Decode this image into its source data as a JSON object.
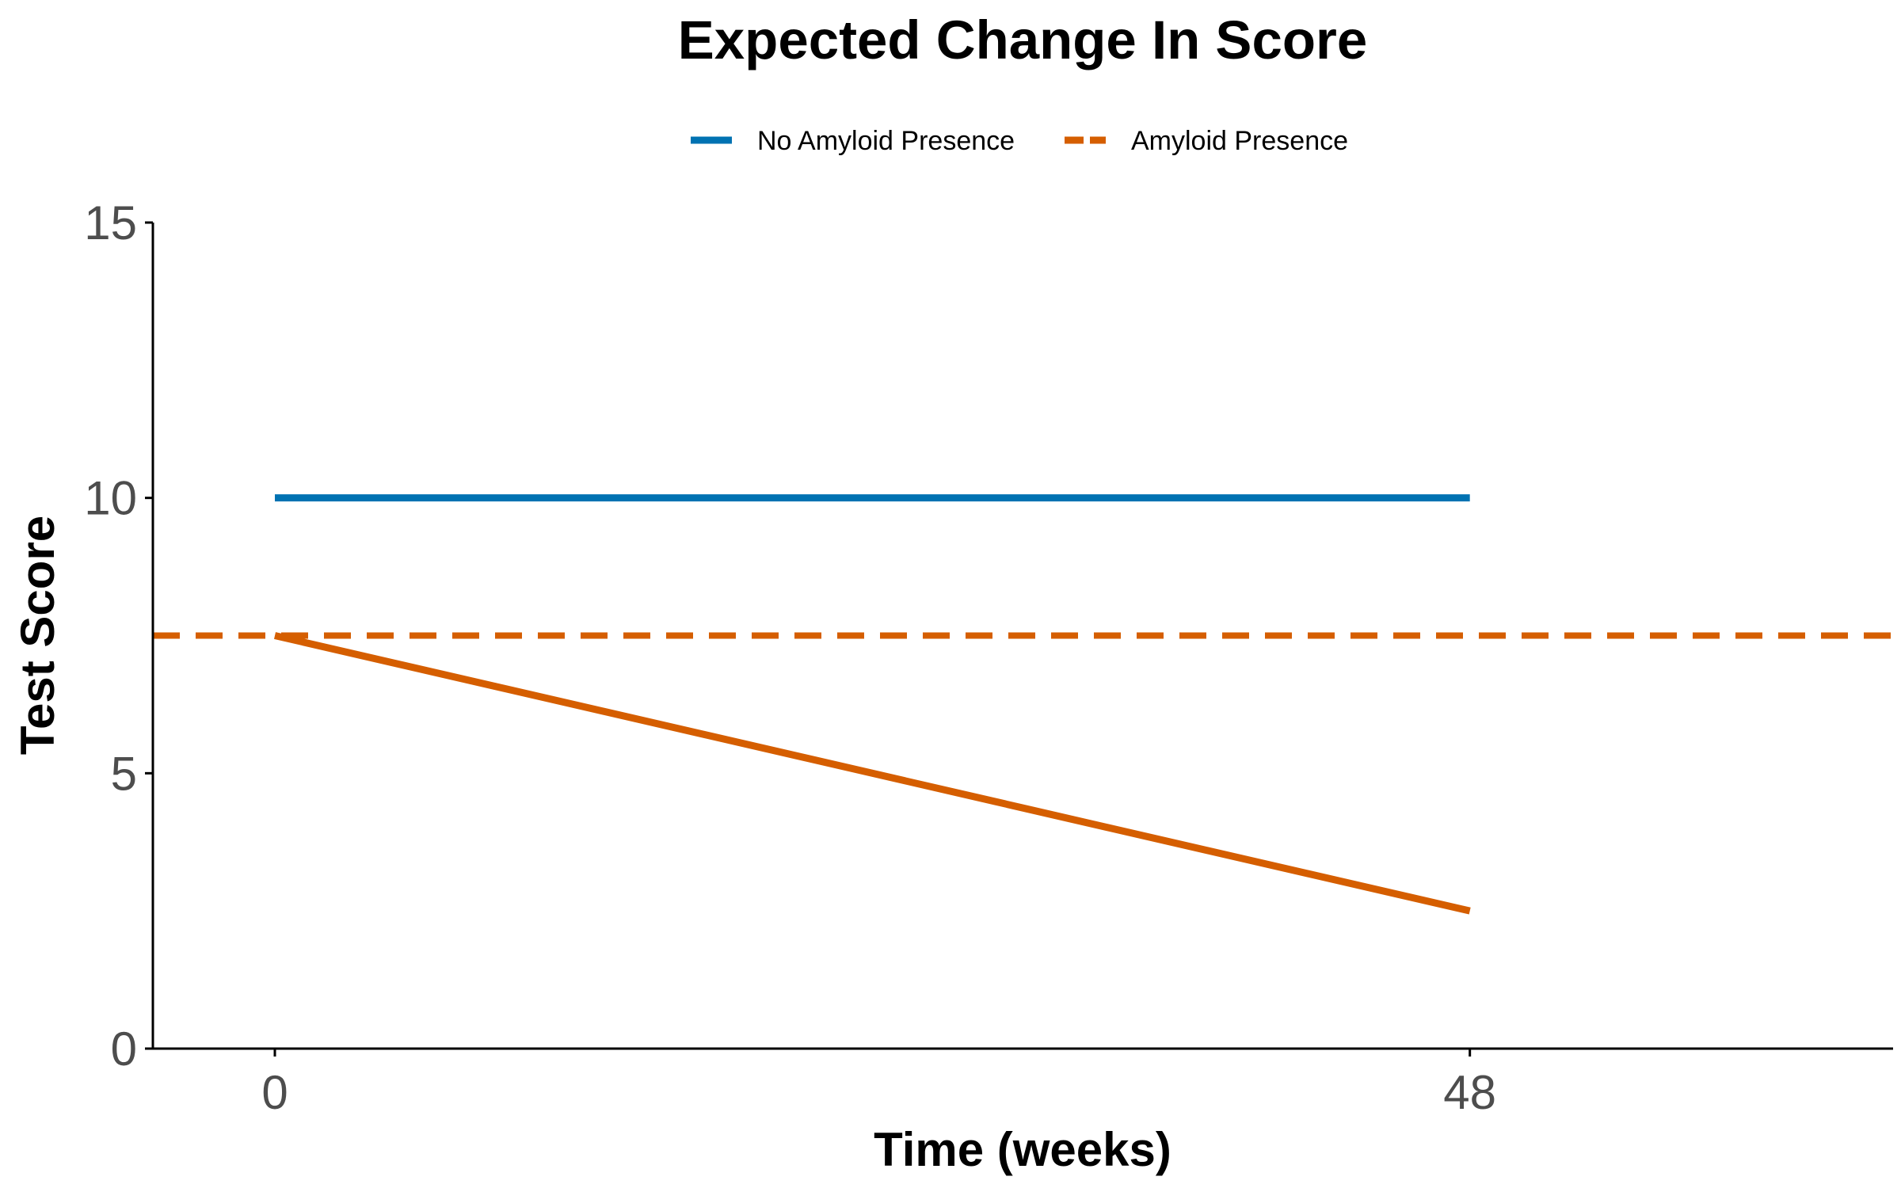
{
  "chart_data": {
    "type": "line",
    "title": "Expected Change In Score",
    "xlabel": "Time (weeks)",
    "ylabel": "Test Score",
    "xlim": [
      -4.9,
      65
    ],
    "ylim": [
      0,
      15
    ],
    "x_ticks": [
      {
        "value": 0,
        "label": "0"
      },
      {
        "value": 48,
        "label": "48"
      }
    ],
    "y_ticks": [
      {
        "value": 0,
        "label": "0"
      },
      {
        "value": 5,
        "label": "5"
      },
      {
        "value": 10,
        "label": "10"
      },
      {
        "value": 15,
        "label": "15"
      }
    ],
    "grid": false,
    "legend_position": "top",
    "series": [
      {
        "name": "No Amyloid Presence",
        "color": "#0072B2",
        "style": "solid",
        "points": [
          {
            "x": 0,
            "y": 10
          },
          {
            "x": 48,
            "y": 10
          }
        ]
      },
      {
        "name": "Amyloid Presence",
        "color": "#D55E00",
        "style": "solid",
        "points": [
          {
            "x": 0,
            "y": 7.5
          },
          {
            "x": 48,
            "y": 2.5
          }
        ]
      }
    ],
    "reference_lines": [
      {
        "orientation": "horizontal",
        "y": 7.5,
        "color": "#D55E00",
        "style": "dashed"
      }
    ],
    "legend": [
      {
        "label": "No Amyloid Presence",
        "color": "#0072B2",
        "style": "solid"
      },
      {
        "label": "Amyloid Presence",
        "color": "#D55E00",
        "style": "dashed"
      }
    ]
  }
}
